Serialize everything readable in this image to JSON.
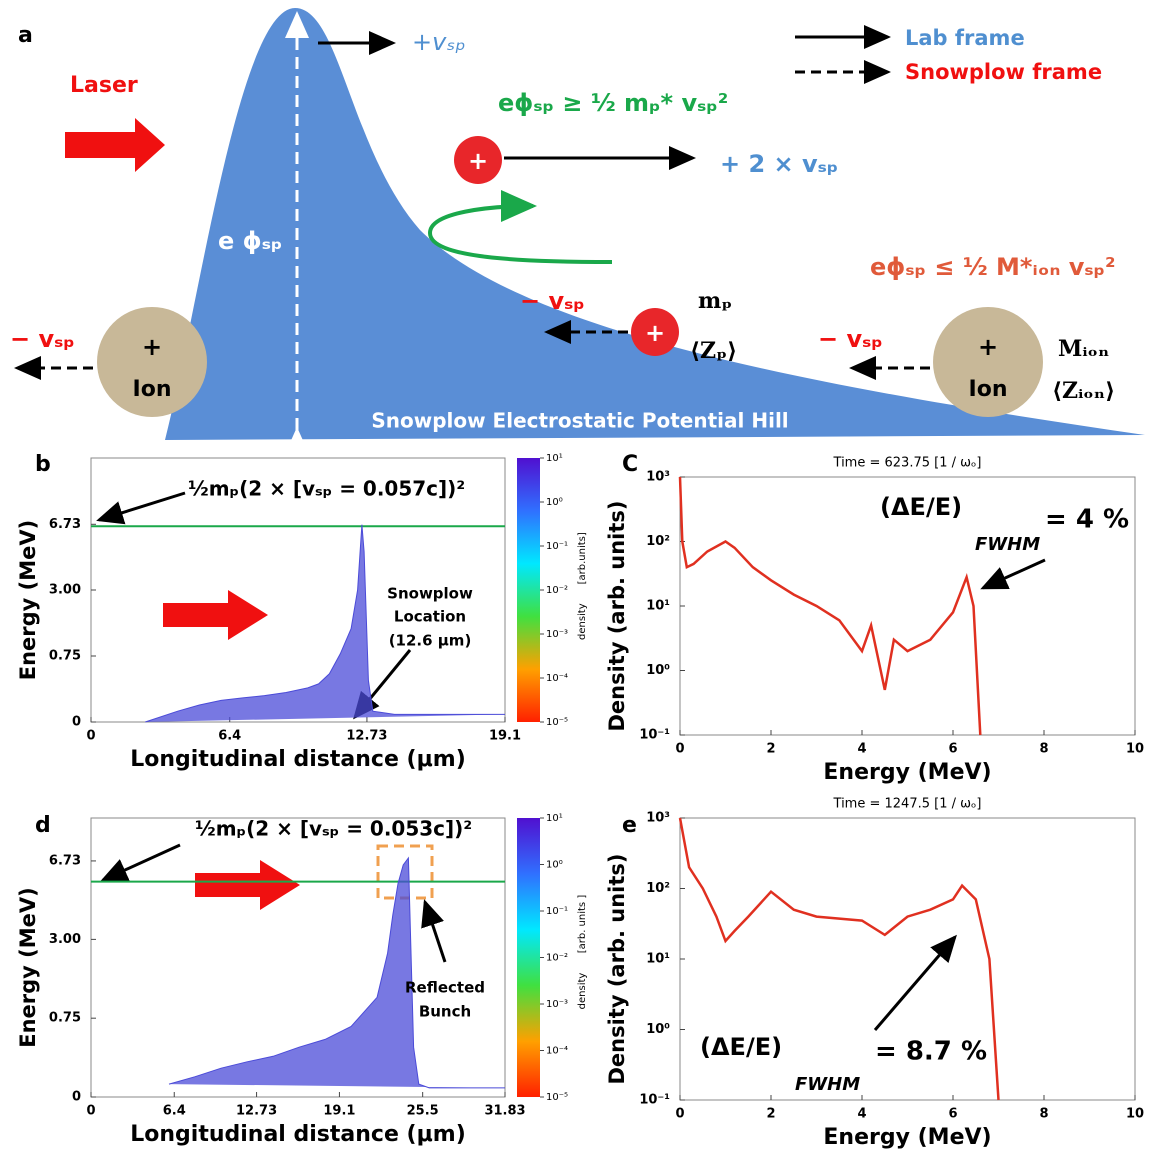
{
  "diagram": {
    "panel_label": "a",
    "laser": "Laser",
    "v_sp_top": "+vₛₚ",
    "reflect_condition": "eϕₛₚ ≥ ½ mₚ* vₛₚ²",
    "reflected_velocity": "+ 2 × vₛₚ",
    "potential": "e ϕₛₚ",
    "pass_condition": "eϕₛₚ ≤ ½ M*ᵢₒₙ vₛₚ²",
    "v_sp_proton": "− vₛₚ",
    "v_sp_left": "− vₛₚ",
    "v_sp_right": "− vₛₚ",
    "proton_mass": "mₚ",
    "proton_charge": "⟨Zₚ⟩",
    "ion_mass": "Mᵢₒₙ",
    "ion_charge": "⟨Zᵢₒₙ⟩",
    "plus": "+",
    "ion": "Ion",
    "hill": "Snowplow Electrostatic Potential Hill",
    "lab_frame": "Lab frame",
    "snowplow_frame": "Snowplow frame"
  },
  "chart_data": [
    {
      "type": "area",
      "panel_label": "b",
      "y_label": "Energy   (MeV)",
      "x_label": "Longitudinal   distance   (μm)",
      "x": [
        2.5,
        4,
        5,
        6,
        7,
        8,
        9,
        10,
        10.5,
        11,
        11.5,
        12,
        12.3,
        12.5,
        12.6,
        12.8,
        13,
        14,
        16,
        19.1
      ],
      "values": [
        0,
        0.02,
        0.05,
        0.08,
        0.1,
        0.12,
        0.15,
        0.2,
        0.25,
        0.4,
        0.8,
        1.5,
        3,
        6.7,
        5,
        0.3,
        0.02,
        0.01,
        0.01,
        0.01
      ],
      "color": "#4b4bd8",
      "yscale": "sqrt",
      "xlim": [
        0,
        19.1
      ],
      "xticks": [
        0,
        6.4,
        12.73,
        19.1
      ],
      "ylim": [
        0,
        12
      ],
      "yticks": [
        0,
        0.75,
        {
          "value": 3,
          "label": "3.00"
        },
        6.73
      ],
      "hline": 6.6,
      "hline_color": "#1aa84a",
      "colorbar": {
        "label": "density",
        "units": "[arb.units]",
        "ticks": [
          {
            "value": 10,
            "label": "10¹"
          },
          {
            "value": 1,
            "label": "10⁰"
          },
          {
            "value": 0.1,
            "label": "10⁻¹"
          },
          {
            "value": 0.01,
            "label": "10⁻²"
          },
          {
            "value": 0.001,
            "label": "10⁻³"
          },
          {
            "value": 0.0001,
            "label": "10⁻⁴"
          },
          {
            "value": 1e-05,
            "label": "10⁻⁵"
          }
        ]
      },
      "annotations": [
        "½mₚ(2 × [vₛₚ = 0.057c])²",
        "Snowplow",
        "Location",
        "(12.6 μm)"
      ]
    },
    {
      "type": "line",
      "panel_label": "C",
      "title": "Time = 623.75 [1 / ωₒ]",
      "y_label": "Density   (arb. units)",
      "x_label": "Energy   (MeV)",
      "x": [
        0,
        0.05,
        0.15,
        0.3,
        0.6,
        1.0,
        1.2,
        1.6,
        2,
        2.5,
        3,
        3.5,
        4,
        4.2,
        4.5,
        4.7,
        5,
        5.5,
        6,
        6.3,
        6.45,
        6.6
      ],
      "values": [
        1000,
        100,
        40,
        45,
        70,
        100,
        80,
        40,
        25,
        15,
        10,
        6,
        2,
        5,
        0.5,
        3,
        2,
        3,
        8,
        28,
        10,
        0.1
      ],
      "color": "#e03020",
      "yscale": "log",
      "xlim": [
        0,
        10
      ],
      "xticks": [
        0,
        2,
        4,
        6,
        8,
        10
      ],
      "ylim": [
        0.1,
        1000
      ],
      "yticks": [
        {
          "value": 0.1,
          "label": "10⁻¹"
        },
        {
          "value": 1,
          "label": "10⁰"
        },
        {
          "value": 10,
          "label": "10¹"
        },
        {
          "value": 100,
          "label": "10²"
        },
        {
          "value": 1000,
          "label": "10³"
        }
      ],
      "annotations": [
        "(ΔE/E)",
        "FWHM",
        "= 4 %"
      ]
    },
    {
      "type": "area",
      "panel_label": "d",
      "y_label": "Energy   (MeV)",
      "x_label": "Longitudinal   distance   (μm)",
      "x": [
        6,
        8,
        10,
        12,
        14,
        16,
        18,
        20,
        22,
        22.8,
        23.2,
        23.6,
        24,
        24.4,
        24.8,
        25.2,
        26,
        31.83
      ],
      "values": [
        0.02,
        0.05,
        0.1,
        0.15,
        0.2,
        0.3,
        0.4,
        0.6,
        1.2,
        2.5,
        4,
        5.5,
        6.5,
        6.9,
        0.3,
        0.02,
        0.01,
        0.01
      ],
      "color": "#4b4bd8",
      "yscale": "sqrt",
      "xlim": [
        0,
        31.83
      ],
      "xticks": [
        0,
        6.4,
        12.73,
        19.1,
        25.5,
        31.83
      ],
      "ylim": [
        0,
        9.4
      ],
      "yticks": [
        0,
        0.75,
        {
          "value": 3,
          "label": "3.00"
        },
        6.73
      ],
      "hline": 5.6,
      "hline_color": "#1aa84a",
      "colorbar": {
        "label": "density",
        "units": "[arb. units ]",
        "ticks": [
          {
            "value": 10,
            "label": "10¹"
          },
          {
            "value": 1,
            "label": "10⁰"
          },
          {
            "value": 0.1,
            "label": "10⁻¹"
          },
          {
            "value": 0.01,
            "label": "10⁻²"
          },
          {
            "value": 0.001,
            "label": "10⁻³"
          },
          {
            "value": 0.0001,
            "label": "10⁻⁴"
          },
          {
            "value": 1e-05,
            "label": "10⁻⁵"
          }
        ]
      },
      "annotations": [
        "½mₚ(2 × [vₛₚ = 0.053c])²",
        "Reflected",
        "Bunch"
      ]
    },
    {
      "type": "line",
      "panel_label": "e",
      "title": "Time    =     1247.5     [1 / ωₒ]",
      "y_label": "Density   (arb. units)",
      "x_label": "Energy   (MeV)",
      "x": [
        0,
        0.2,
        0.5,
        0.8,
        1,
        1.2,
        1.5,
        2,
        2.5,
        3,
        4,
        4.5,
        5,
        5.5,
        6,
        6.2,
        6.5,
        6.8,
        7
      ],
      "values": [
        1000,
        200,
        100,
        40,
        18,
        25,
        40,
        90,
        50,
        40,
        35,
        22,
        40,
        50,
        70,
        110,
        70,
        10,
        0.1
      ],
      "color": "#e03020",
      "yscale": "log",
      "xlim": [
        0,
        10
      ],
      "xticks": [
        0,
        2,
        4,
        6,
        8,
        10
      ],
      "ylim": [
        0.1,
        1000
      ],
      "yticks": [
        {
          "value": 0.1,
          "label": "10⁻¹"
        },
        {
          "value": 1,
          "label": "10⁰"
        },
        {
          "value": 10,
          "label": "10¹"
        },
        {
          "value": 100,
          "label": "10²"
        },
        {
          "value": 1000,
          "label": "10³"
        }
      ],
      "annotations": [
        "(ΔE/E)",
        "FWHM",
        "= 8.7 %"
      ]
    }
  ]
}
